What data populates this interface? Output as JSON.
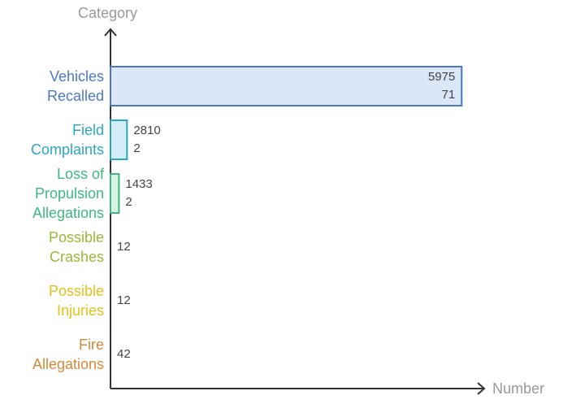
{
  "chart_data": {
    "type": "bar",
    "orientation": "horizontal",
    "y_axis_label": "Category",
    "x_axis_label": "Number",
    "categories": [
      "Vehicles Recalled",
      "Field Complaints",
      "Loss of Propulsion Allegations",
      "Possible Crashes",
      "Possible Injuries",
      "Fire Allegations"
    ],
    "values": [
      597571,
      28102,
      14332,
      12,
      12,
      42
    ],
    "colors": [
      "#4a78c7",
      "#2ba7c4",
      "#3db980",
      "#9ab83a",
      "#e0c21e",
      "#d4893a"
    ],
    "fills": [
      "#dbe6f9",
      "#d4eef7",
      "#d7f3e3",
      "#eef4d8",
      "#fbf4d2",
      "#f8e6d4"
    ],
    "xlim": [
      0,
      600000
    ]
  }
}
